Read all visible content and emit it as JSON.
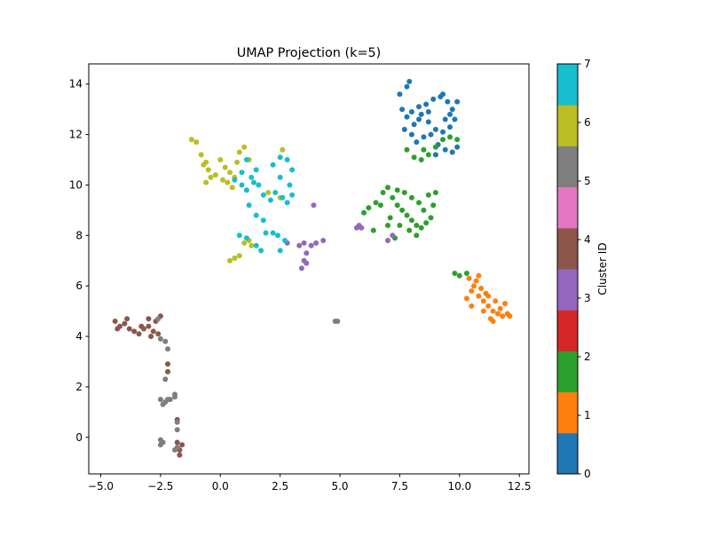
{
  "chart_data": {
    "type": "scatter",
    "title": "UMAP Projection (k=5)",
    "xlabel": "",
    "ylabel": "",
    "xlim": [
      -5.5,
      12.9
    ],
    "ylim": [
      -1.45,
      14.8
    ],
    "xticks": [
      -5.0,
      -2.5,
      0.0,
      2.5,
      5.0,
      7.5,
      10.0,
      12.5
    ],
    "xtick_labels": [
      "−5.0",
      "−2.5",
      "0.0",
      "2.5",
      "5.0",
      "7.5",
      "10.0",
      "12.5"
    ],
    "yticks": [
      0,
      2,
      4,
      6,
      8,
      10,
      12,
      14
    ],
    "ytick_labels": [
      "0",
      "2",
      "4",
      "6",
      "8",
      "10",
      "12",
      "14"
    ],
    "grid": false,
    "colorbar": {
      "label": "Cluster ID",
      "range": [
        0,
        7
      ],
      "ticks": [
        0,
        1,
        2,
        3,
        4,
        5,
        6,
        7
      ],
      "colors": [
        "#1f77b4",
        "#ff7f0e",
        "#2ca02c",
        "#d62728",
        "#9467bd",
        "#8c564b",
        "#e377c2",
        "#7f7f7f",
        "#bcbd22",
        "#17becf"
      ]
    },
    "point_colors": {
      "0": "#1f77b4",
      "1": "#ff7f0e",
      "2": "#2ca02c",
      "3": "#9467bd",
      "4": "#8c564b",
      "5": "#7f7f7f",
      "6": "#bcbd22",
      "7": "#17becf"
    },
    "clusters": [
      {
        "cluster": 0,
        "points": [
          [
            7.6,
            13.0
          ],
          [
            7.8,
            12.7
          ],
          [
            8.0,
            12.9
          ],
          [
            8.3,
            13.1
          ],
          [
            8.6,
            13.2
          ],
          [
            8.9,
            13.4
          ],
          [
            9.2,
            13.5
          ],
          [
            9.5,
            13.3
          ],
          [
            9.7,
            13.0
          ],
          [
            9.8,
            12.6
          ],
          [
            9.6,
            12.3
          ],
          [
            9.3,
            12.1
          ],
          [
            9.0,
            12.2
          ],
          [
            8.7,
            12.5
          ],
          [
            8.4,
            12.8
          ],
          [
            8.1,
            12.4
          ],
          [
            7.7,
            12.2
          ],
          [
            7.9,
            14.1
          ],
          [
            7.8,
            13.9
          ],
          [
            7.5,
            13.6
          ],
          [
            8.3,
            12.6
          ],
          [
            8.8,
            12.0
          ],
          [
            9.1,
            11.6
          ],
          [
            9.4,
            11.4
          ],
          [
            9.7,
            11.3
          ],
          [
            9.9,
            11.5
          ],
          [
            8.2,
            11.7
          ],
          [
            8.0,
            12.0
          ],
          [
            9.3,
            13.6
          ],
          [
            9.6,
            12.8
          ],
          [
            9.9,
            13.3
          ],
          [
            8.5,
            11.9
          ],
          [
            9.0,
            11.2
          ],
          [
            8.7,
            12.9
          ],
          [
            9.4,
            12.6
          ]
        ]
      },
      {
        "cluster": 1,
        "points": [
          [
            10.4,
            6.3
          ],
          [
            10.7,
            6.2
          ],
          [
            10.5,
            5.8
          ],
          [
            10.8,
            5.6
          ],
          [
            11.0,
            5.4
          ],
          [
            11.2,
            5.2
          ],
          [
            11.4,
            5.0
          ],
          [
            11.6,
            4.9
          ],
          [
            11.8,
            4.8
          ],
          [
            12.0,
            4.9
          ],
          [
            11.3,
            4.7
          ],
          [
            11.0,
            5.0
          ],
          [
            10.9,
            5.9
          ],
          [
            11.1,
            5.7
          ],
          [
            11.5,
            5.4
          ],
          [
            10.6,
            6.0
          ],
          [
            10.3,
            5.5
          ],
          [
            11.7,
            5.1
          ],
          [
            11.9,
            5.3
          ],
          [
            10.8,
            6.4
          ],
          [
            11.4,
            4.6
          ],
          [
            12.1,
            4.8
          ],
          [
            10.5,
            5.2
          ],
          [
            11.2,
            5.6
          ]
        ]
      },
      {
        "cluster": 2,
        "points": [
          [
            7.2,
            9.5
          ],
          [
            7.4,
            9.2
          ],
          [
            7.6,
            9.0
          ],
          [
            7.8,
            8.8
          ],
          [
            8.0,
            8.6
          ],
          [
            8.2,
            8.4
          ],
          [
            8.4,
            8.3
          ],
          [
            8.6,
            8.5
          ],
          [
            8.8,
            8.7
          ],
          [
            8.5,
            9.0
          ],
          [
            8.3,
            9.3
          ],
          [
            8.0,
            9.5
          ],
          [
            7.7,
            9.7
          ],
          [
            7.4,
            9.8
          ],
          [
            7.0,
            9.9
          ],
          [
            6.8,
            9.7
          ],
          [
            6.5,
            9.3
          ],
          [
            6.2,
            9.1
          ],
          [
            6.0,
            8.9
          ],
          [
            7.1,
            8.7
          ],
          [
            7.5,
            8.4
          ],
          [
            7.9,
            8.2
          ],
          [
            8.7,
            9.6
          ],
          [
            9.0,
            9.7
          ],
          [
            8.9,
            9.2
          ],
          [
            7.3,
            7.9
          ],
          [
            6.7,
            9.2
          ],
          [
            8.1,
            11.1
          ],
          [
            8.4,
            11.0
          ],
          [
            8.7,
            11.2
          ],
          [
            9.0,
            11.5
          ],
          [
            9.3,
            11.8
          ],
          [
            9.6,
            11.9
          ],
          [
            9.9,
            11.8
          ],
          [
            8.5,
            11.4
          ],
          [
            7.8,
            11.4
          ],
          [
            8.2,
            8.0
          ],
          [
            6.4,
            8.2
          ],
          [
            7.0,
            8.4
          ],
          [
            9.8,
            6.5
          ],
          [
            10.0,
            6.4
          ],
          [
            10.3,
            6.5
          ]
        ]
      },
      {
        "cluster": 3,
        "points": [
          [
            3.5,
            7.7
          ],
          [
            3.8,
            7.6
          ],
          [
            4.0,
            7.7
          ],
          [
            4.3,
            7.8
          ],
          [
            3.6,
            7.3
          ],
          [
            3.5,
            7.0
          ],
          [
            3.4,
            6.7
          ],
          [
            3.6,
            6.9
          ],
          [
            2.8,
            7.7
          ],
          [
            5.7,
            8.3
          ],
          [
            5.8,
            8.4
          ],
          [
            5.9,
            8.3
          ],
          [
            3.9,
            9.2
          ],
          [
            7.0,
            7.8
          ],
          [
            7.2,
            8.0
          ],
          [
            3.3,
            7.6
          ]
        ]
      },
      {
        "cluster": 4,
        "points": [
          [
            -4.4,
            4.6
          ],
          [
            -4.2,
            4.4
          ],
          [
            -4.0,
            4.5
          ],
          [
            -3.8,
            4.3
          ],
          [
            -3.6,
            4.2
          ],
          [
            -3.4,
            4.1
          ],
          [
            -3.2,
            4.3
          ],
          [
            -3.0,
            4.4
          ],
          [
            -2.8,
            4.2
          ],
          [
            -2.6,
            4.1
          ],
          [
            -2.7,
            4.6
          ],
          [
            -3.0,
            4.7
          ],
          [
            -3.3,
            4.4
          ],
          [
            -4.3,
            4.3
          ],
          [
            -3.9,
            4.7
          ],
          [
            -2.9,
            4.0
          ],
          [
            -2.2,
            2.9
          ],
          [
            -2.2,
            2.6
          ],
          [
            -1.8,
            0.7
          ],
          [
            -1.8,
            -0.2
          ],
          [
            -1.7,
            -0.5
          ],
          [
            -1.6,
            -0.3
          ],
          [
            -1.7,
            -0.7
          ],
          [
            -2.5,
            4.8
          ]
        ]
      },
      {
        "cluster": 5,
        "points": [
          [
            -2.5,
            3.9
          ],
          [
            -2.3,
            3.8
          ],
          [
            -2.2,
            3.5
          ],
          [
            -2.3,
            2.3
          ],
          [
            -2.5,
            1.5
          ],
          [
            -2.3,
            1.4
          ],
          [
            -2.1,
            1.5
          ],
          [
            -1.9,
            1.6
          ],
          [
            -2.4,
            1.3
          ],
          [
            -1.9,
            1.7
          ],
          [
            -1.8,
            0.3
          ],
          [
            -2.5,
            -0.1
          ],
          [
            -2.4,
            -0.2
          ],
          [
            -2.5,
            -0.3
          ],
          [
            -1.9,
            -0.5
          ],
          [
            -1.8,
            -0.4
          ],
          [
            -2.6,
            4.7
          ],
          [
            4.8,
            4.6
          ],
          [
            4.9,
            4.6
          ],
          [
            -2.2,
            1.5
          ],
          [
            -1.8,
            0.6
          ]
        ]
      },
      {
        "cluster": 6,
        "points": [
          [
            -1.2,
            11.8
          ],
          [
            -1.0,
            11.7
          ],
          [
            -0.8,
            11.2
          ],
          [
            -0.6,
            10.9
          ],
          [
            -0.5,
            10.6
          ],
          [
            -0.4,
            10.3
          ],
          [
            -0.6,
            10.1
          ],
          [
            -0.2,
            10.4
          ],
          [
            0.0,
            11.0
          ],
          [
            0.2,
            10.7
          ],
          [
            0.4,
            10.5
          ],
          [
            0.6,
            10.3
          ],
          [
            0.8,
            11.3
          ],
          [
            1.0,
            11.5
          ],
          [
            0.7,
            10.9
          ],
          [
            1.2,
            11.0
          ],
          [
            0.3,
            10.1
          ],
          [
            0.5,
            9.9
          ],
          [
            1.0,
            7.7
          ],
          [
            1.2,
            7.8
          ],
          [
            1.3,
            7.6
          ],
          [
            0.4,
            7.0
          ],
          [
            0.6,
            7.1
          ],
          [
            0.8,
            7.2
          ],
          [
            2.0,
            9.7
          ],
          [
            2.5,
            9.5
          ],
          [
            2.6,
            11.4
          ],
          [
            -0.7,
            10.8
          ],
          [
            0.1,
            10.2
          ]
        ]
      },
      {
        "cluster": 7,
        "points": [
          [
            0.6,
            10.2
          ],
          [
            0.9,
            10.0
          ],
          [
            1.1,
            9.8
          ],
          [
            1.3,
            10.3
          ],
          [
            1.6,
            10.0
          ],
          [
            1.8,
            9.6
          ],
          [
            2.1,
            9.4
          ],
          [
            2.3,
            9.7
          ],
          [
            2.6,
            9.5
          ],
          [
            2.8,
            9.3
          ],
          [
            3.0,
            9.6
          ],
          [
            2.9,
            10.0
          ],
          [
            2.5,
            10.3
          ],
          [
            2.2,
            10.8
          ],
          [
            2.5,
            11.1
          ],
          [
            2.8,
            11.0
          ],
          [
            3.0,
            10.6
          ],
          [
            1.5,
            10.6
          ],
          [
            1.1,
            11.0
          ],
          [
            1.2,
            9.2
          ],
          [
            1.5,
            8.8
          ],
          [
            1.8,
            8.6
          ],
          [
            0.8,
            8.0
          ],
          [
            1.1,
            7.9
          ],
          [
            1.5,
            7.6
          ],
          [
            1.7,
            7.4
          ],
          [
            1.9,
            8.1
          ],
          [
            2.2,
            8.1
          ],
          [
            2.4,
            8.0
          ],
          [
            2.7,
            7.8
          ],
          [
            2.5,
            7.4
          ],
          [
            0.9,
            10.5
          ],
          [
            1.4,
            10.1
          ]
        ]
      }
    ]
  }
}
